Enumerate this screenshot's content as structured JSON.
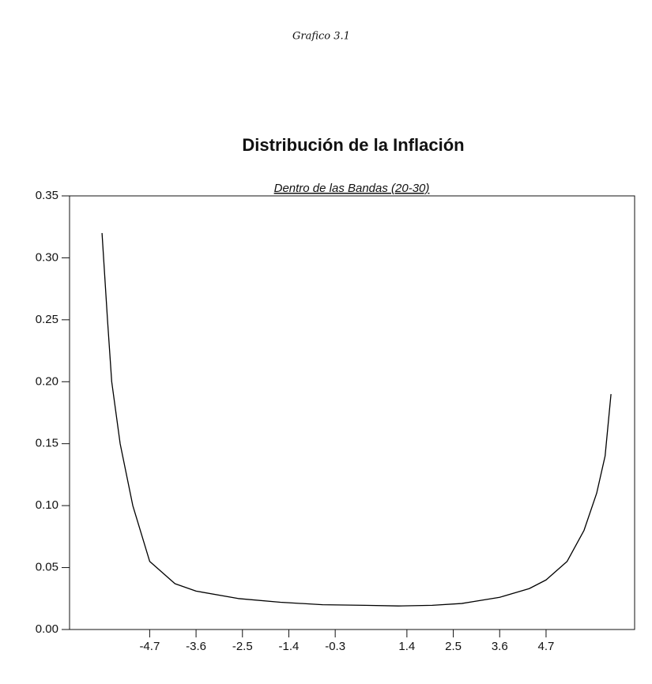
{
  "header": "Grafico 3.1",
  "chart_data": {
    "type": "line",
    "title": "Distribución de la Inflación",
    "subtitle": "Dentro de las Bandas (20-30)",
    "x": [
      -5.83,
      -5.7,
      -5.6,
      -5.4,
      -5.1,
      -4.7,
      -4.1,
      -3.6,
      -2.6,
      -1.6,
      -0.6,
      0.4,
      1.2,
      2.0,
      2.7,
      3.6,
      4.3,
      4.7,
      5.2,
      5.6,
      5.9,
      6.1,
      6.24
    ],
    "values": [
      0.32,
      0.25,
      0.2,
      0.15,
      0.1,
      0.055,
      0.037,
      0.031,
      0.025,
      0.022,
      0.02,
      0.0195,
      0.019,
      0.0195,
      0.021,
      0.026,
      0.033,
      0.04,
      0.055,
      0.08,
      0.11,
      0.14,
      0.19
    ],
    "color": "#000000",
    "xlim": [
      -6.6,
      6.8
    ],
    "xticks": [
      -4.7,
      -3.6,
      -2.5,
      -1.4,
      -0.3,
      1.4,
      2.5,
      3.6,
      4.7
    ],
    "ylim": [
      0,
      0.35
    ],
    "yticks": [
      {
        "value": 0,
        "label": "0.00"
      },
      0.05,
      {
        "value": 0.1,
        "label": "0.10"
      },
      0.15,
      {
        "value": 0.2,
        "label": "0.20"
      },
      0.25,
      {
        "value": 0.3,
        "label": "0.30"
      },
      0.35
    ]
  }
}
